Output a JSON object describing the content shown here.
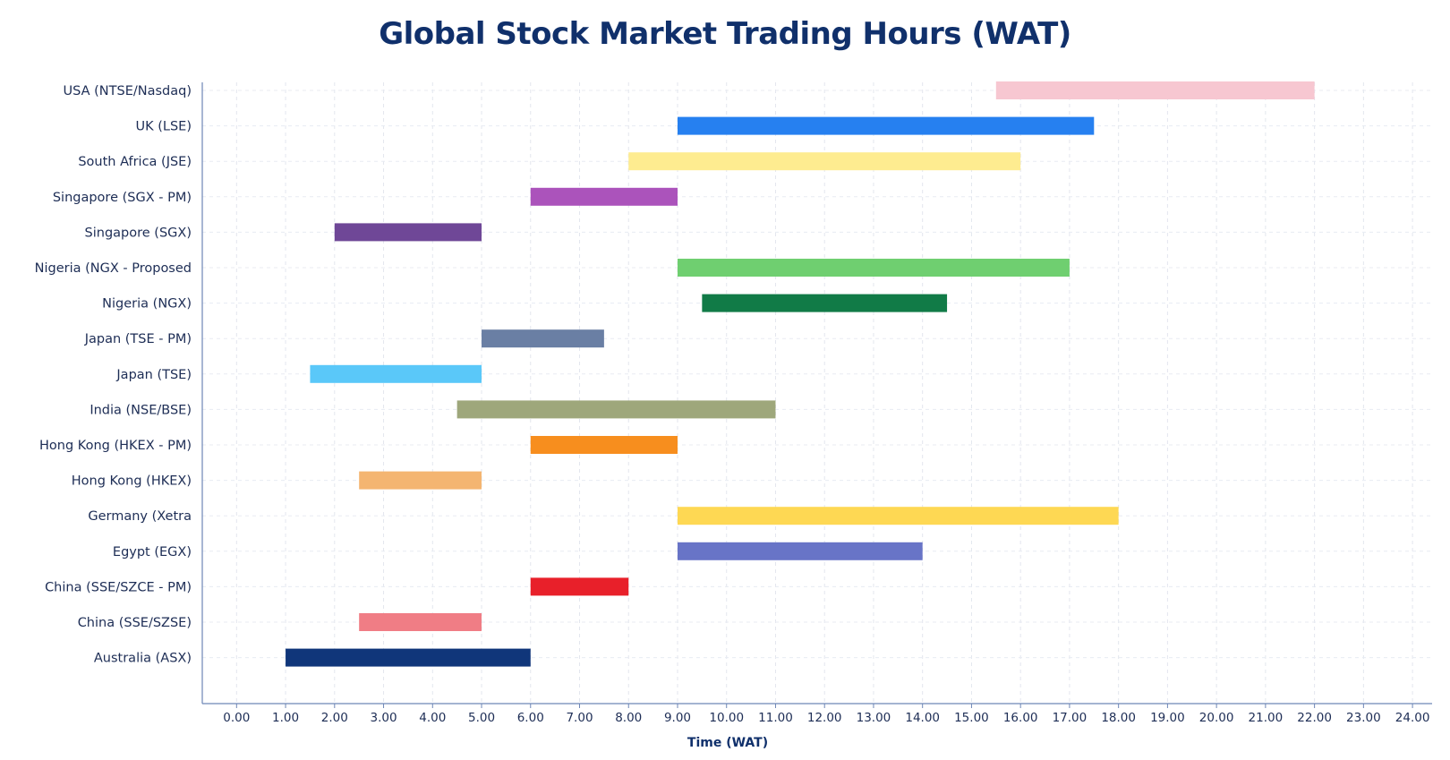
{
  "chart_data": {
    "type": "bar",
    "orientation": "horizontal-range",
    "title": "Global Stock Market Trading Hours (WAT)",
    "xlabel": "Time (WAT)",
    "ylabel": "",
    "xlim": [
      -0.7,
      24.4
    ],
    "grid": true,
    "x_ticks": [
      "0.00",
      "1.00",
      "2.00",
      "3.00",
      "4.00",
      "5.00",
      "6.00",
      "7.00",
      "8.00",
      "9.00",
      "10.00",
      "11.00",
      "12.00",
      "13.00",
      "14.00",
      "15.00",
      "16.00",
      "17.00",
      "18.00",
      "19.00",
      "20.00",
      "21.00",
      "22.00",
      "23.00",
      "24.00"
    ],
    "categories": [
      "USA (NTSE/Nasdaq)",
      "UK (LSE)",
      "South Africa (JSE)",
      "Singapore (SGX - PM)",
      "Singapore (SGX)",
      "Nigeria (NGX - Proposed",
      "Nigeria (NGX)",
      "Japan (TSE - PM)",
      "Japan (TSE)",
      "India (NSE/BSE)",
      "Hong Kong (HKEX - PM)",
      "Hong Kong (HKEX)",
      "Germany (Xetra",
      "Egypt (EGX)",
      "China (SSE/SZCE - PM)",
      "China (SSE/SZSE)",
      "Australia (ASX)"
    ],
    "ranges": [
      {
        "start": 15.5,
        "end": 22.0,
        "color": "#f7c7d1"
      },
      {
        "start": 9.0,
        "end": 17.5,
        "color": "#2680f0"
      },
      {
        "start": 8.0,
        "end": 16.0,
        "color": "#feec90"
      },
      {
        "start": 6.0,
        "end": 9.0,
        "color": "#ab53bb"
      },
      {
        "start": 2.0,
        "end": 5.0,
        "color": "#6f4797"
      },
      {
        "start": 9.0,
        "end": 17.0,
        "color": "#6fcf70"
      },
      {
        "start": 9.5,
        "end": 14.5,
        "color": "#117b47"
      },
      {
        "start": 5.0,
        "end": 7.5,
        "color": "#6a7fa4"
      },
      {
        "start": 1.5,
        "end": 5.0,
        "color": "#5ac8f9"
      },
      {
        "start": 4.5,
        "end": 11.0,
        "color": "#9ea77b"
      },
      {
        "start": 6.0,
        "end": 9.0,
        "color": "#f78e1e"
      },
      {
        "start": 2.5,
        "end": 5.0,
        "color": "#f4b571"
      },
      {
        "start": 9.0,
        "end": 18.0,
        "color": "#fed853"
      },
      {
        "start": 9.0,
        "end": 14.0,
        "color": "#6874c7"
      },
      {
        "start": 6.0,
        "end": 8.0,
        "color": "#e8202a"
      },
      {
        "start": 2.5,
        "end": 5.0,
        "color": "#f07d85"
      },
      {
        "start": 1.0,
        "end": 6.0,
        "color": "#10367a"
      }
    ]
  }
}
